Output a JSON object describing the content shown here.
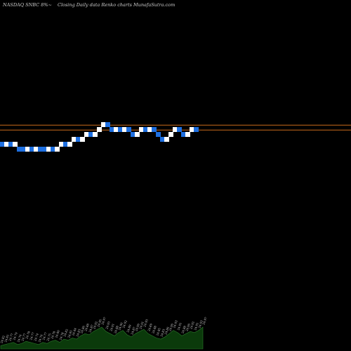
{
  "header": {
    "symbol": "NASDAQ SNBC 8%~",
    "caption": "Closing Daily data  Renko  charts MunafaSutra.com"
  },
  "colors": {
    "background": "#000000",
    "brick_up": "#ffffff",
    "brick_down": "#1e6fe0",
    "support_line": "#c96a1a",
    "volume_area": "#0b3a0b",
    "volume_stroke": "#2b7a2b",
    "volume_label": "#d8d8d8",
    "header_text": "#cfcfcf"
  },
  "chart_data": {
    "type": "renko",
    "title": "",
    "brick_size": 0.05,
    "reference_lines": [
      24.97,
      24.92
    ],
    "bricks": [
      {
        "dir": "down",
        "close": 24.75
      },
      {
        "dir": "up",
        "close": 24.8
      },
      {
        "dir": "down",
        "close": 24.75
      },
      {
        "dir": "up",
        "close": 24.8
      },
      {
        "dir": "down",
        "close": 24.7
      },
      {
        "dir": "down",
        "close": 24.7
      },
      {
        "dir": "up",
        "close": 24.75
      },
      {
        "dir": "down",
        "close": 24.7
      },
      {
        "dir": "up",
        "close": 24.75
      },
      {
        "dir": "down",
        "close": 24.7
      },
      {
        "dir": "down",
        "close": 24.7
      },
      {
        "dir": "up",
        "close": 24.75
      },
      {
        "dir": "down",
        "close": 24.7
      },
      {
        "dir": "up",
        "close": 24.75
      },
      {
        "dir": "up",
        "close": 24.8
      },
      {
        "dir": "down",
        "close": 24.75
      },
      {
        "dir": "up",
        "close": 24.8
      },
      {
        "dir": "up",
        "close": 24.85
      },
      {
        "dir": "down",
        "close": 24.8
      },
      {
        "dir": "up",
        "close": 24.85
      },
      {
        "dir": "up",
        "close": 24.9
      },
      {
        "dir": "down",
        "close": 24.85
      },
      {
        "dir": "up",
        "close": 24.9
      },
      {
        "dir": "up",
        "close": 24.95
      },
      {
        "dir": "up",
        "close": 25.0
      },
      {
        "dir": "down",
        "close": 24.95
      },
      {
        "dir": "down",
        "close": 24.9
      },
      {
        "dir": "up",
        "close": 24.95
      },
      {
        "dir": "down",
        "close": 24.9
      },
      {
        "dir": "up",
        "close": 24.95
      },
      {
        "dir": "down",
        "close": 24.9
      },
      {
        "dir": "down",
        "close": 24.85
      },
      {
        "dir": "up",
        "close": 24.9
      },
      {
        "dir": "up",
        "close": 24.95
      },
      {
        "dir": "down",
        "close": 24.9
      },
      {
        "dir": "up",
        "close": 24.95
      },
      {
        "dir": "down",
        "close": 24.9
      },
      {
        "dir": "down",
        "close": 24.85
      },
      {
        "dir": "down",
        "close": 24.8
      },
      {
        "dir": "up",
        "close": 24.85
      },
      {
        "dir": "up",
        "close": 24.9
      },
      {
        "dir": "up",
        "close": 24.95
      },
      {
        "dir": "down",
        "close": 24.9
      },
      {
        "dir": "down",
        "close": 24.85
      },
      {
        "dir": "up",
        "close": 24.9
      },
      {
        "dir": "up",
        "close": 24.95
      },
      {
        "dir": "down",
        "close": 24.9
      }
    ],
    "volume_labels": [
      "24.82",
      "24.81",
      "24.77",
      "24.79",
      "24.76",
      "24.77",
      "24.78",
      "24.77",
      "24.74",
      "24.76",
      "24.77",
      "24.75",
      "24.78",
      "24.80",
      "24.78",
      "24.82",
      "24.81",
      "24.84",
      "24.83",
      "24.86",
      "24.88",
      "24.87",
      "24.92",
      "24.95",
      "24.97",
      "24.93",
      "24.91",
      "24.88",
      "24.90",
      "24.92",
      "24.89",
      "24.87",
      "24.90",
      "24.91",
      "24.93",
      "24.89",
      "24.88",
      "24.85",
      "24.83",
      "24.86",
      "24.90",
      "24.93",
      "24.91",
      "24.88",
      "24.90",
      "24.92",
      "24.91",
      "24.93",
      "24.97"
    ],
    "volume_values": [
      3,
      4,
      5,
      6,
      4,
      5,
      7,
      6,
      5,
      4,
      6,
      5,
      7,
      8,
      6,
      9,
      8,
      10,
      9,
      12,
      14,
      13,
      16,
      18,
      20,
      16,
      14,
      12,
      15,
      17,
      13,
      11,
      14,
      16,
      18,
      14,
      12,
      10,
      9,
      11,
      14,
      17,
      15,
      12,
      14,
      16,
      15,
      17,
      20
    ]
  }
}
